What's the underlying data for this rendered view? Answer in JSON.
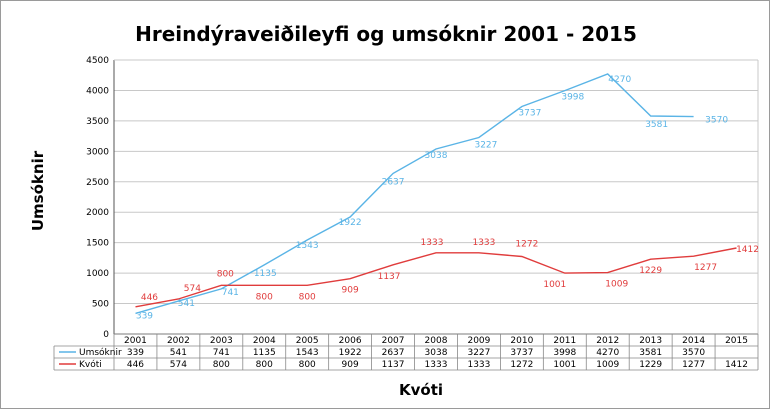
{
  "chart_data": {
    "type": "line",
    "title": "Hreindýraveiðileyfi og umsóknir 2001 - 2015",
    "ylabel": "Umsóknir",
    "xlabel": "Kvóti",
    "ylim": [
      0,
      4500
    ],
    "yticks": [
      "0",
      "500",
      "1000",
      "1500",
      "2000",
      "2500",
      "3000",
      "3500",
      "4000",
      "4500"
    ],
    "grid": true,
    "legend": "data-table",
    "categories": [
      "2001",
      "2002",
      "2003",
      "2004",
      "2005",
      "2006",
      "2007",
      "2008",
      "2009",
      "2010",
      "2011",
      "2012",
      "2013",
      "2014",
      "2015"
    ],
    "series": [
      {
        "name": "Umsóknir",
        "color": "#5ab4e6",
        "values": [
          339,
          541,
          741,
          1135,
          1543,
          1922,
          2637,
          3038,
          3227,
          3737,
          3998,
          4270,
          3581,
          3570,
          null
        ]
      },
      {
        "name": "Kvóti",
        "color": "#e03c3c",
        "values": [
          446,
          574,
          800,
          800,
          800,
          909,
          1137,
          1333,
          1333,
          1272,
          1001,
          1009,
          1229,
          1277,
          1412
        ]
      }
    ]
  }
}
